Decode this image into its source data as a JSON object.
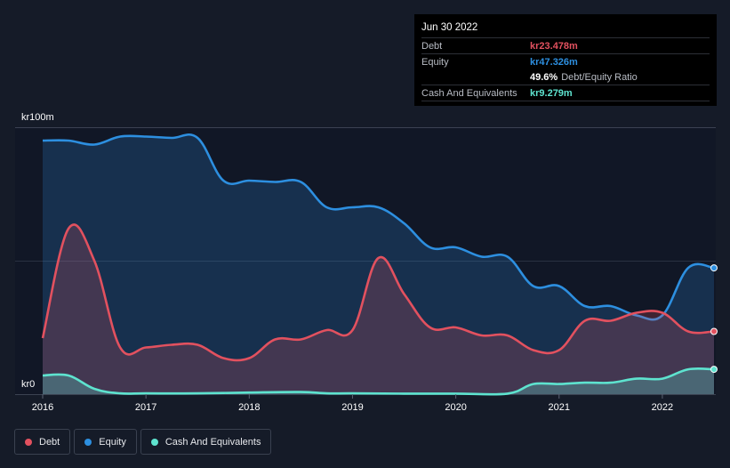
{
  "chart_data": {
    "type": "area",
    "currency_axis": {
      "top_label": "kr100m",
      "bottom_label": "kr0"
    },
    "ylim": [
      0,
      100
    ],
    "x_ticks": [
      "2016",
      "2017",
      "2018",
      "2019",
      "2020",
      "2021",
      "2022"
    ],
    "xlim": [
      2016.0,
      2022.5
    ],
    "series": [
      {
        "name": "Equity",
        "color": "#2d8fe0",
        "points": [
          [
            2016.0,
            95
          ],
          [
            2016.25,
            95
          ],
          [
            2016.5,
            93.5
          ],
          [
            2016.75,
            96.5
          ],
          [
            2017.0,
            96.5
          ],
          [
            2017.25,
            96
          ],
          [
            2017.5,
            96
          ],
          [
            2017.75,
            80
          ],
          [
            2018.0,
            80
          ],
          [
            2018.25,
            79.5
          ],
          [
            2018.5,
            79.5
          ],
          [
            2018.75,
            70
          ],
          [
            2019.0,
            70
          ],
          [
            2019.25,
            70
          ],
          [
            2019.5,
            64
          ],
          [
            2019.75,
            55
          ],
          [
            2020.0,
            55
          ],
          [
            2020.25,
            51.5
          ],
          [
            2020.5,
            51.5
          ],
          [
            2020.75,
            40.5
          ],
          [
            2021.0,
            40.5
          ],
          [
            2021.25,
            33
          ],
          [
            2021.5,
            33
          ],
          [
            2021.75,
            29.5
          ],
          [
            2022.0,
            29.5
          ],
          [
            2022.25,
            47.3
          ],
          [
            2022.5,
            47.3
          ]
        ]
      },
      {
        "name": "Debt",
        "color": "#e2515f",
        "points": [
          [
            2016.0,
            21
          ],
          [
            2016.25,
            62
          ],
          [
            2016.5,
            50
          ],
          [
            2016.75,
            17.5
          ],
          [
            2017.0,
            17.5
          ],
          [
            2017.25,
            18.5
          ],
          [
            2017.5,
            18.5
          ],
          [
            2017.75,
            13.5
          ],
          [
            2018.0,
            13.5
          ],
          [
            2018.25,
            20.5
          ],
          [
            2018.5,
            20.5
          ],
          [
            2018.75,
            24
          ],
          [
            2019.0,
            24
          ],
          [
            2019.25,
            51
          ],
          [
            2019.5,
            37.5
          ],
          [
            2019.75,
            25
          ],
          [
            2020.0,
            25
          ],
          [
            2020.25,
            22
          ],
          [
            2020.5,
            22
          ],
          [
            2020.75,
            16.5
          ],
          [
            2021.0,
            16.5
          ],
          [
            2021.25,
            27.5
          ],
          [
            2021.5,
            27.5
          ],
          [
            2021.75,
            30.5
          ],
          [
            2022.0,
            30.5
          ],
          [
            2022.25,
            23.5
          ],
          [
            2022.5,
            23.5
          ]
        ]
      },
      {
        "name": "Cash And Equivalents",
        "color": "#5ee3cf",
        "points": [
          [
            2016.0,
            7
          ],
          [
            2016.25,
            7
          ],
          [
            2016.5,
            2
          ],
          [
            2016.75,
            0.3
          ],
          [
            2017.0,
            0.3
          ],
          [
            2017.5,
            0.3
          ],
          [
            2018.0,
            0.6
          ],
          [
            2018.5,
            0.8
          ],
          [
            2018.75,
            0.3
          ],
          [
            2019.0,
            0.3
          ],
          [
            2019.5,
            0.2
          ],
          [
            2020.0,
            0.2
          ],
          [
            2020.5,
            0.2
          ],
          [
            2020.75,
            3.8
          ],
          [
            2021.0,
            3.8
          ],
          [
            2021.25,
            4.3
          ],
          [
            2021.5,
            4.3
          ],
          [
            2021.75,
            5.8
          ],
          [
            2022.0,
            5.8
          ],
          [
            2022.25,
            9.3
          ],
          [
            2022.5,
            9.3
          ]
        ]
      }
    ]
  },
  "tooltip": {
    "date": "Jun 30 2022",
    "debt_label": "Debt",
    "debt_value": "kr23.478m",
    "equity_label": "Equity",
    "equity_value": "kr47.326m",
    "ratio_value": "49.6%",
    "ratio_label": "Debt/Equity Ratio",
    "cash_label": "Cash And Equivalents",
    "cash_value": "kr9.279m"
  },
  "colors": {
    "debt": "#e2515f",
    "equity": "#2d8fe0",
    "cash": "#5ee3cf"
  },
  "legend": {
    "debt": "Debt",
    "equity": "Equity",
    "cash": "Cash And Equivalents"
  }
}
